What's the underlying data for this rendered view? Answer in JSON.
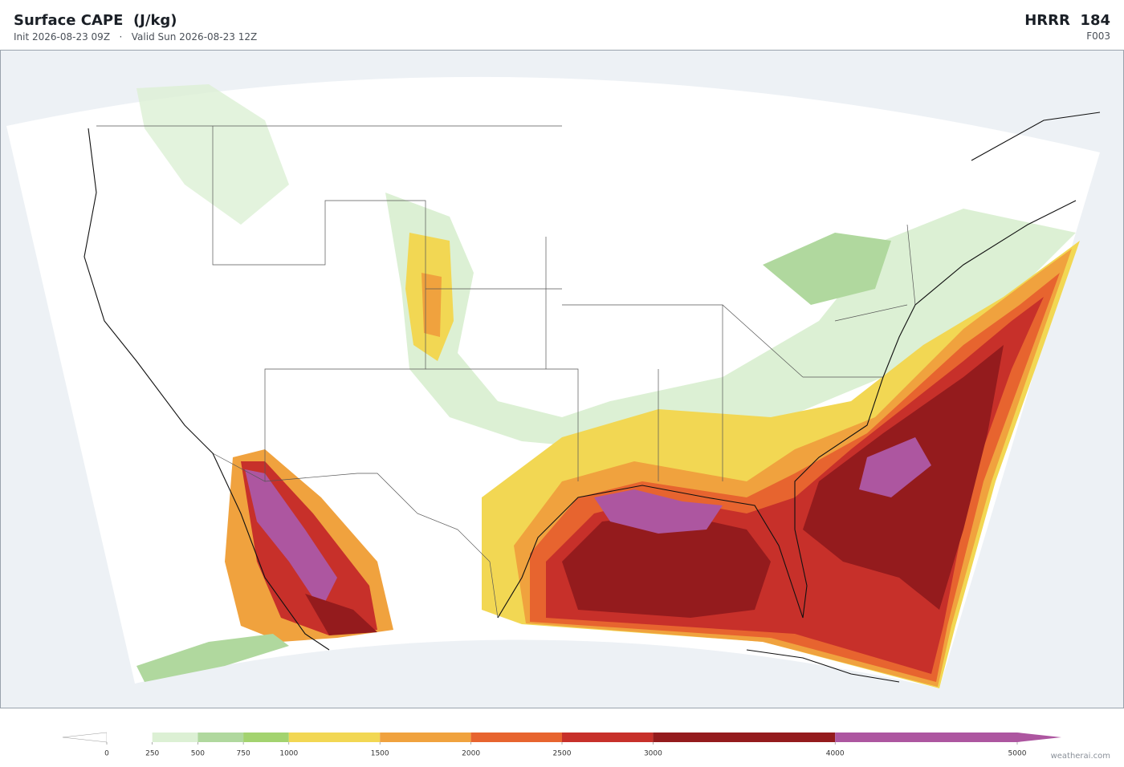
{
  "header": {
    "title": "Surface CAPE  (J/kg)",
    "init": "Init 2026-08-23 09Z",
    "separator": "·",
    "valid": "Valid Sun 2026-08-23 12Z",
    "model": "HRRR  184",
    "frame": "F003"
  },
  "colorbar": {
    "levels": [
      0,
      250,
      500,
      750,
      1000,
      1500,
      2000,
      2500,
      3000,
      4000,
      5000
    ],
    "colors": [
      "#ffffff",
      "#dcf0d4",
      "#b0d89e",
      "#a3d36f",
      "#f2d753",
      "#f0a23e",
      "#e7642f",
      "#c7302a",
      "#941b1d",
      "#ad56a0"
    ]
  },
  "watermark": "weatherai.com"
}
